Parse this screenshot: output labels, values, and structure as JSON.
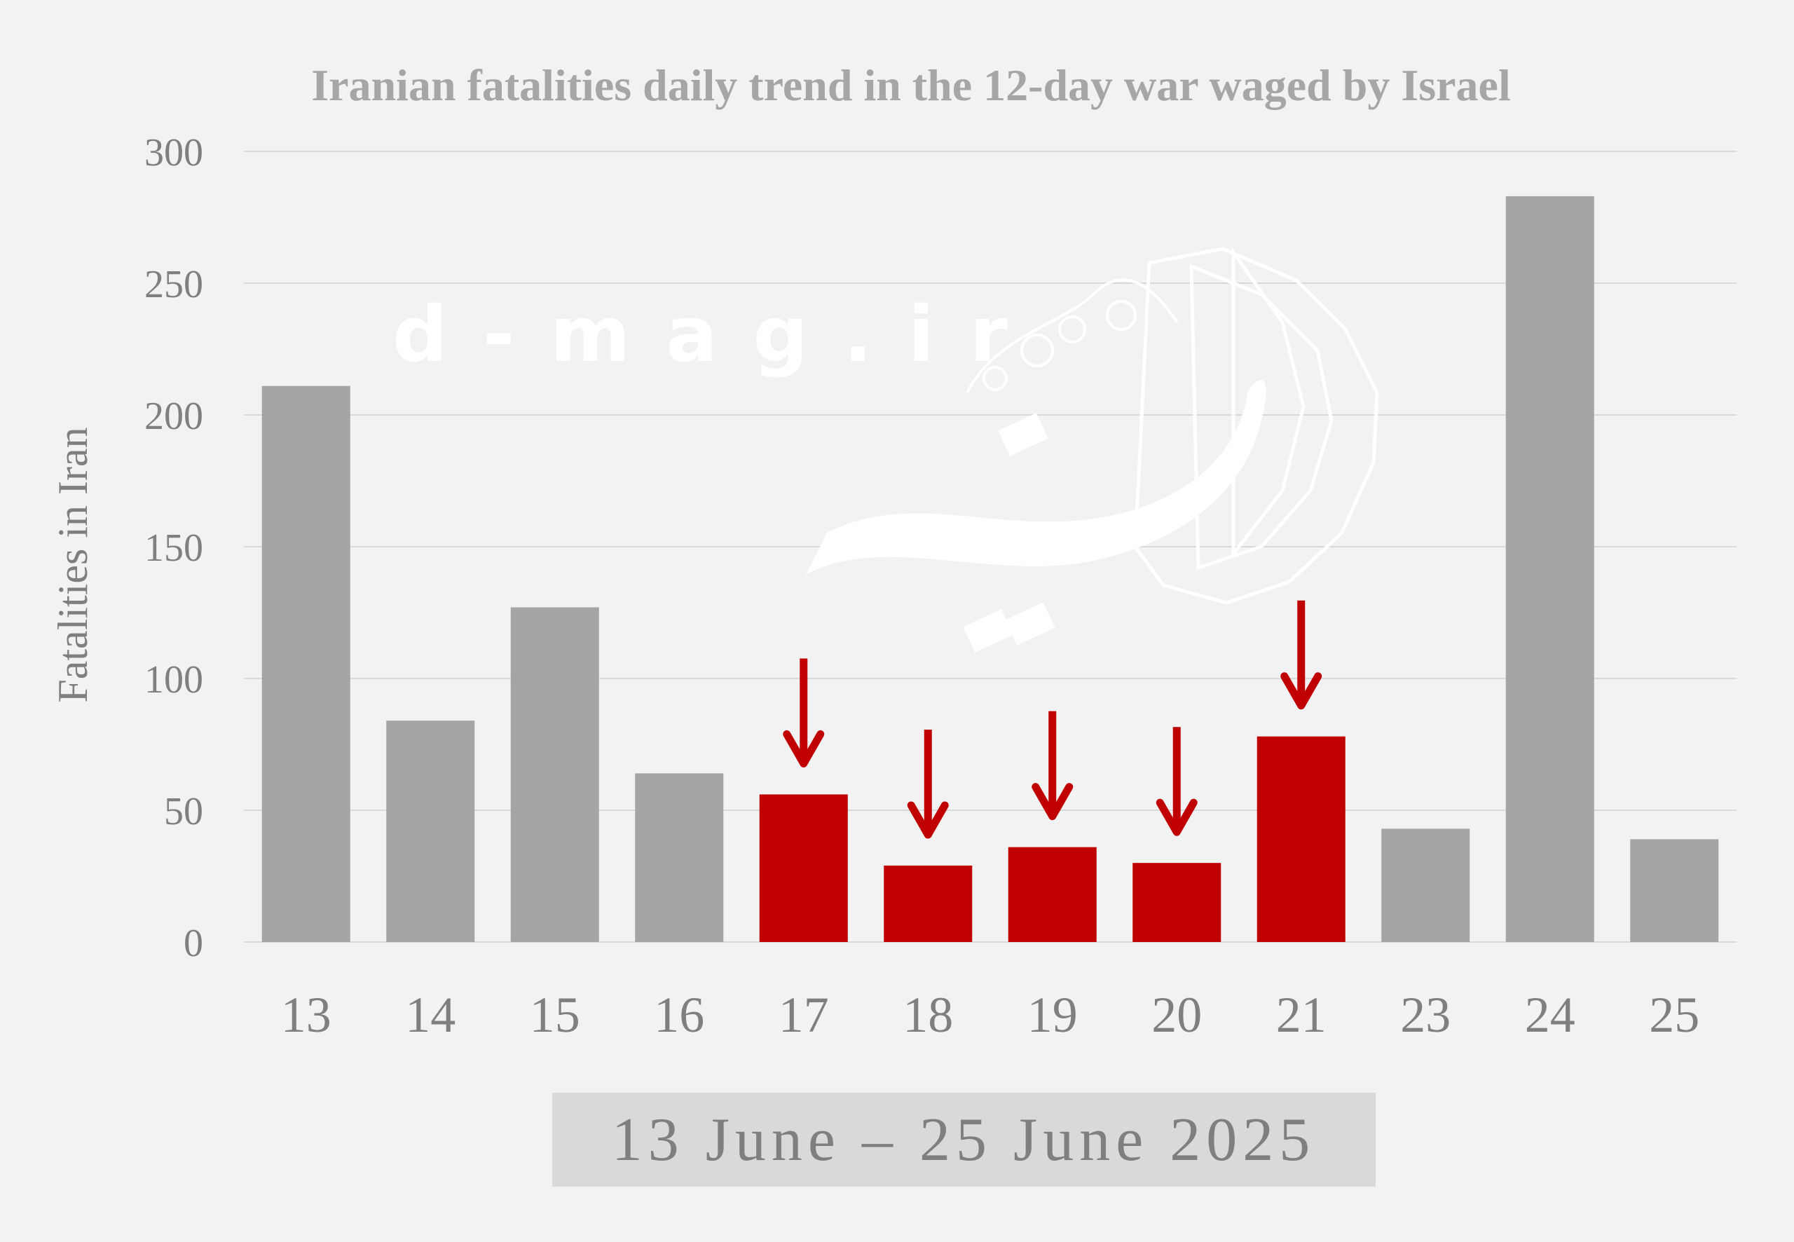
{
  "chart_data": {
    "type": "bar",
    "title": "Iranian fatalities daily trend in the 12-day war waged by Israel",
    "ylabel": "Fatalities in Iran",
    "xlabel": "13 June – 25 June 2025",
    "ylim": [
      0,
      300
    ],
    "yticks": [
      0,
      50,
      100,
      150,
      200,
      250,
      300
    ],
    "grid": true,
    "categories": [
      "13",
      "14",
      "15",
      "16",
      "17",
      "18",
      "19",
      "20",
      "21",
      "23",
      "24",
      "25"
    ],
    "values": [
      211,
      84,
      127,
      64,
      56,
      29,
      36,
      30,
      78,
      43,
      283,
      39
    ],
    "highlighted": [
      false,
      false,
      false,
      false,
      true,
      true,
      true,
      true,
      true,
      false,
      false,
      false
    ],
    "colors": {
      "bar": "#a5a5a5",
      "highlight": "#c00000",
      "arrow": "#c00000",
      "grid": "#d9d9d9",
      "axis_label_box": "#d9d9d9"
    }
  },
  "watermark": {
    "text": "d - m a g . i r"
  }
}
